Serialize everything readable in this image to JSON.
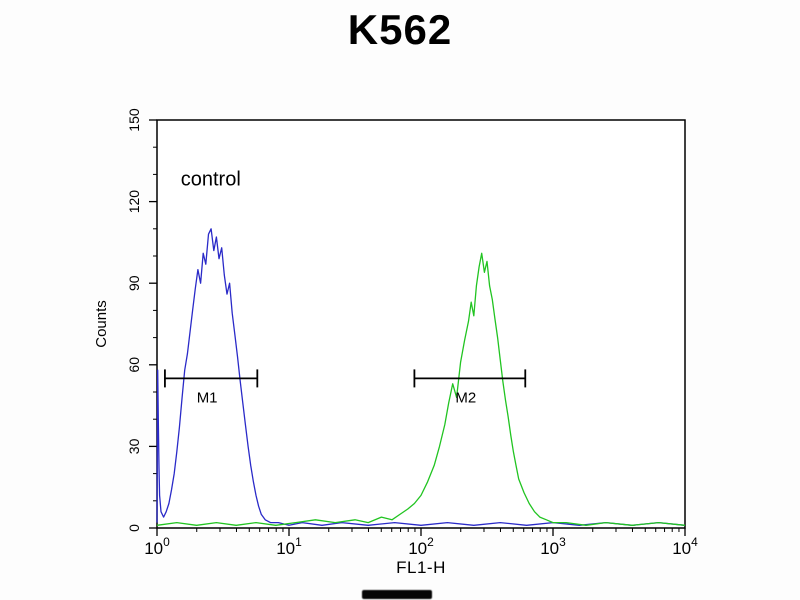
{
  "title": "K562",
  "colors": {
    "control_curve": "#2a2ac8",
    "sample_curve": "#21c421",
    "axis": "#000000",
    "annotation_text": "#1a1a1a"
  },
  "chart_data": {
    "type": "line",
    "title": "K562",
    "xlabel": "FL1-H",
    "ylabel": "Counts",
    "x_scale": "log",
    "xlim_log": [
      0,
      4
    ],
    "ylim": [
      0,
      150
    ],
    "grid": false,
    "legend": "none",
    "annotation": "control",
    "x_ticks": [
      {
        "base": "10",
        "exp": "0"
      },
      {
        "base": "10",
        "exp": "1"
      },
      {
        "base": "10",
        "exp": "2"
      },
      {
        "base": "10",
        "exp": "3"
      },
      {
        "base": "10",
        "exp": "4"
      }
    ],
    "y_ticks": [
      0,
      30,
      60,
      90,
      120,
      150
    ],
    "y_minor_step": 10,
    "markers": [
      {
        "label": "M1",
        "from_log": 0.06,
        "to_log": 0.76,
        "y_count": 55
      },
      {
        "label": "M2",
        "from_log": 1.95,
        "to_log": 2.79,
        "y_count": 55
      }
    ],
    "series": [
      {
        "name": "control (blue)",
        "color": "#2a2ac8",
        "points": [
          [
            0.0,
            2
          ],
          [
            0.005,
            58
          ],
          [
            0.01,
            40
          ],
          [
            0.015,
            22
          ],
          [
            0.02,
            12
          ],
          [
            0.03,
            6
          ],
          [
            0.05,
            4
          ],
          [
            0.07,
            6
          ],
          [
            0.09,
            9
          ],
          [
            0.11,
            14
          ],
          [
            0.13,
            20
          ],
          [
            0.15,
            28
          ],
          [
            0.17,
            37
          ],
          [
            0.19,
            48
          ],
          [
            0.21,
            58
          ],
          [
            0.23,
            64
          ],
          [
            0.25,
            72
          ],
          [
            0.27,
            80
          ],
          [
            0.29,
            88
          ],
          [
            0.31,
            95
          ],
          [
            0.33,
            90
          ],
          [
            0.35,
            101
          ],
          [
            0.37,
            97
          ],
          [
            0.39,
            108
          ],
          [
            0.41,
            110
          ],
          [
            0.43,
            102
          ],
          [
            0.45,
            107
          ],
          [
            0.47,
            99
          ],
          [
            0.49,
            103
          ],
          [
            0.51,
            93
          ],
          [
            0.53,
            86
          ],
          [
            0.55,
            90
          ],
          [
            0.57,
            79
          ],
          [
            0.59,
            71
          ],
          [
            0.61,
            63
          ],
          [
            0.63,
            54
          ],
          [
            0.65,
            46
          ],
          [
            0.67,
            38
          ],
          [
            0.69,
            30
          ],
          [
            0.71,
            23
          ],
          [
            0.73,
            17
          ],
          [
            0.75,
            12
          ],
          [
            0.77,
            8
          ],
          [
            0.79,
            5
          ],
          [
            0.82,
            3
          ],
          [
            0.86,
            2
          ],
          [
            0.92,
            2
          ],
          [
            1.0,
            1
          ],
          [
            1.1,
            2
          ],
          [
            1.25,
            1
          ],
          [
            1.4,
            2
          ],
          [
            1.6,
            1
          ],
          [
            1.8,
            2
          ],
          [
            2.0,
            1
          ],
          [
            2.2,
            2
          ],
          [
            2.4,
            1
          ],
          [
            2.6,
            2
          ],
          [
            2.8,
            1
          ],
          [
            3.0,
            2
          ],
          [
            3.2,
            1
          ],
          [
            3.4,
            2
          ],
          [
            3.6,
            1
          ],
          [
            3.8,
            2
          ],
          [
            4.0,
            1
          ]
        ]
      },
      {
        "name": "sample (green)",
        "color": "#21c421",
        "points": [
          [
            0.0,
            1
          ],
          [
            0.15,
            2
          ],
          [
            0.3,
            1
          ],
          [
            0.45,
            2
          ],
          [
            0.6,
            1
          ],
          [
            0.75,
            2
          ],
          [
            0.9,
            1
          ],
          [
            1.05,
            2
          ],
          [
            1.2,
            3
          ],
          [
            1.35,
            2
          ],
          [
            1.5,
            3
          ],
          [
            1.6,
            2
          ],
          [
            1.7,
            4
          ],
          [
            1.78,
            3
          ],
          [
            1.84,
            5
          ],
          [
            1.9,
            7
          ],
          [
            1.95,
            9
          ],
          [
            2.0,
            12
          ],
          [
            2.05,
            17
          ],
          [
            2.1,
            23
          ],
          [
            2.14,
            30
          ],
          [
            2.18,
            38
          ],
          [
            2.21,
            46
          ],
          [
            2.24,
            53
          ],
          [
            2.27,
            48
          ],
          [
            2.3,
            61
          ],
          [
            2.33,
            69
          ],
          [
            2.36,
            76
          ],
          [
            2.38,
            83
          ],
          [
            2.4,
            78
          ],
          [
            2.42,
            89
          ],
          [
            2.44,
            96
          ],
          [
            2.46,
            101
          ],
          [
            2.48,
            94
          ],
          [
            2.5,
            98
          ],
          [
            2.52,
            89
          ],
          [
            2.54,
            84
          ],
          [
            2.56,
            77
          ],
          [
            2.58,
            70
          ],
          [
            2.6,
            62
          ],
          [
            2.62,
            54
          ],
          [
            2.64,
            47
          ],
          [
            2.66,
            41
          ],
          [
            2.68,
            34
          ],
          [
            2.7,
            28
          ],
          [
            2.72,
            23
          ],
          [
            2.74,
            18
          ],
          [
            2.78,
            13
          ],
          [
            2.82,
            9
          ],
          [
            2.86,
            6
          ],
          [
            2.9,
            4
          ],
          [
            2.95,
            3
          ],
          [
            3.0,
            2
          ],
          [
            3.1,
            2
          ],
          [
            3.25,
            1
          ],
          [
            3.4,
            2
          ],
          [
            3.6,
            1
          ],
          [
            3.8,
            2
          ],
          [
            4.0,
            1
          ]
        ]
      }
    ]
  }
}
